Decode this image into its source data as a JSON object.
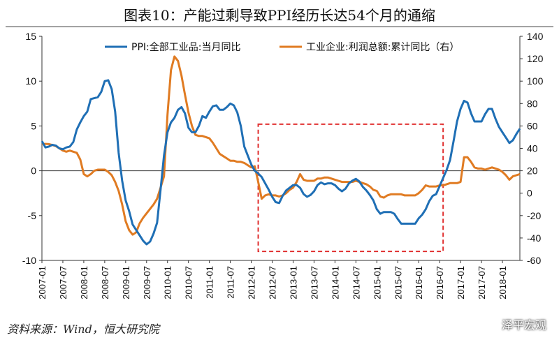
{
  "title": "图表10：产能过剩导致PPI经历长达54个月的通缩",
  "source": "资料来源：Wind，恒大研究院",
  "watermark": "泽平宏观",
  "chart_data": {
    "type": "line",
    "title": "图表10：产能过剩导致PPI经历长达54个月的通缩",
    "left_axis": {
      "ylim": [
        -10,
        15
      ],
      "ticks": [
        -10,
        -5,
        0,
        5,
        10,
        15
      ]
    },
    "right_axis": {
      "ylim": [
        -60,
        140
      ],
      "ticks": [
        -60,
        -40,
        -20,
        0,
        20,
        40,
        60,
        80,
        100,
        120,
        140
      ]
    },
    "x_tick_labels": [
      "2007-01",
      "2007-07",
      "2008-01",
      "2008-07",
      "2009-01",
      "2009-07",
      "2010-01",
      "2010-07",
      "2011-01",
      "2011-07",
      "2012-01",
      "2012-07",
      "2013-01",
      "2013-07",
      "2014-01",
      "2014-07",
      "2015-01",
      "2015-07",
      "2016-01",
      "2016-07",
      "2017-01",
      "2017-07",
      "2018-01"
    ],
    "x_range": [
      "2007-01",
      "2018-06"
    ],
    "legend_position": "top",
    "series": [
      {
        "name": "PPI:全部工业品:当月同比",
        "axis": "left",
        "color": "#1f6fb5",
        "points": [
          [
            "2007-01",
            3.3
          ],
          [
            "2007-02",
            2.6
          ],
          [
            "2007-03",
            2.7
          ],
          [
            "2007-04",
            2.9
          ],
          [
            "2007-05",
            2.8
          ],
          [
            "2007-06",
            2.5
          ],
          [
            "2007-07",
            2.4
          ],
          [
            "2007-08",
            2.6
          ],
          [
            "2007-09",
            2.7
          ],
          [
            "2007-10",
            3.2
          ],
          [
            "2007-11",
            4.6
          ],
          [
            "2007-12",
            5.4
          ],
          [
            "2008-01",
            6.1
          ],
          [
            "2008-02",
            6.6
          ],
          [
            "2008-03",
            8.0
          ],
          [
            "2008-04",
            8.1
          ],
          [
            "2008-05",
            8.2
          ],
          [
            "2008-06",
            8.8
          ],
          [
            "2008-07",
            10.0
          ],
          [
            "2008-08",
            10.1
          ],
          [
            "2008-09",
            9.1
          ],
          [
            "2008-10",
            6.6
          ],
          [
            "2008-11",
            2.0
          ],
          [
            "2008-12",
            -1.1
          ],
          [
            "2009-01",
            -3.3
          ],
          [
            "2009-02",
            -4.5
          ],
          [
            "2009-03",
            -6.0
          ],
          [
            "2009-04",
            -6.6
          ],
          [
            "2009-05",
            -7.2
          ],
          [
            "2009-06",
            -7.8
          ],
          [
            "2009-07",
            -8.2
          ],
          [
            "2009-08",
            -7.9
          ],
          [
            "2009-09",
            -7.0
          ],
          [
            "2009-10",
            -5.8
          ],
          [
            "2009-11",
            -2.1
          ],
          [
            "2009-12",
            1.7
          ],
          [
            "2010-01",
            4.3
          ],
          [
            "2010-02",
            5.4
          ],
          [
            "2010-03",
            5.9
          ],
          [
            "2010-04",
            6.8
          ],
          [
            "2010-05",
            7.1
          ],
          [
            "2010-06",
            6.4
          ],
          [
            "2010-07",
            4.8
          ],
          [
            "2010-08",
            4.3
          ],
          [
            "2010-09",
            4.3
          ],
          [
            "2010-10",
            5.0
          ],
          [
            "2010-11",
            6.1
          ],
          [
            "2010-12",
            5.9
          ],
          [
            "2011-01",
            6.6
          ],
          [
            "2011-02",
            7.2
          ],
          [
            "2011-03",
            7.3
          ],
          [
            "2011-04",
            6.8
          ],
          [
            "2011-05",
            6.8
          ],
          [
            "2011-06",
            7.1
          ],
          [
            "2011-07",
            7.5
          ],
          [
            "2011-08",
            7.3
          ],
          [
            "2011-09",
            6.5
          ],
          [
            "2011-10",
            5.0
          ],
          [
            "2011-11",
            2.7
          ],
          [
            "2011-12",
            1.7
          ],
          [
            "2012-01",
            0.7
          ],
          [
            "2012-02",
            0.0
          ],
          [
            "2012-03",
            -0.3
          ],
          [
            "2012-04",
            -0.7
          ],
          [
            "2012-05",
            -1.4
          ],
          [
            "2012-06",
            -2.1
          ],
          [
            "2012-07",
            -2.9
          ],
          [
            "2012-08",
            -3.5
          ],
          [
            "2012-09",
            -3.6
          ],
          [
            "2012-10",
            -2.8
          ],
          [
            "2012-11",
            -2.2
          ],
          [
            "2012-12",
            -1.9
          ],
          [
            "2013-01",
            -1.6
          ],
          [
            "2013-02",
            -1.6
          ],
          [
            "2013-03",
            -1.9
          ],
          [
            "2013-04",
            -2.6
          ],
          [
            "2013-05",
            -2.9
          ],
          [
            "2013-06",
            -2.7
          ],
          [
            "2013-07",
            -2.3
          ],
          [
            "2013-08",
            -1.6
          ],
          [
            "2013-09",
            -1.3
          ],
          [
            "2013-10",
            -1.5
          ],
          [
            "2013-11",
            -1.4
          ],
          [
            "2013-12",
            -1.4
          ],
          [
            "2014-01",
            -1.6
          ],
          [
            "2014-02",
            -2.0
          ],
          [
            "2014-03",
            -2.3
          ],
          [
            "2014-04",
            -2.0
          ],
          [
            "2014-05",
            -1.4
          ],
          [
            "2014-06",
            -1.1
          ],
          [
            "2014-07",
            -0.9
          ],
          [
            "2014-08",
            -1.2
          ],
          [
            "2014-09",
            -1.8
          ],
          [
            "2014-10",
            -2.2
          ],
          [
            "2014-11",
            -2.7
          ],
          [
            "2014-12",
            -3.3
          ],
          [
            "2015-01",
            -4.3
          ],
          [
            "2015-02",
            -4.8
          ],
          [
            "2015-03",
            -4.6
          ],
          [
            "2015-04",
            -4.6
          ],
          [
            "2015-05",
            -4.6
          ],
          [
            "2015-06",
            -4.8
          ],
          [
            "2015-07",
            -5.4
          ],
          [
            "2015-08",
            -5.9
          ],
          [
            "2015-09",
            -5.9
          ],
          [
            "2015-10",
            -5.9
          ],
          [
            "2015-11",
            -5.9
          ],
          [
            "2015-12",
            -5.9
          ],
          [
            "2016-01",
            -5.3
          ],
          [
            "2016-02",
            -4.9
          ],
          [
            "2016-03",
            -4.3
          ],
          [
            "2016-04",
            -3.4
          ],
          [
            "2016-05",
            -2.8
          ],
          [
            "2016-06",
            -2.6
          ],
          [
            "2016-07",
            -1.7
          ],
          [
            "2016-08",
            -0.8
          ],
          [
            "2016-09",
            0.1
          ],
          [
            "2016-10",
            1.2
          ],
          [
            "2016-11",
            3.3
          ],
          [
            "2016-12",
            5.5
          ],
          [
            "2017-01",
            6.9
          ],
          [
            "2017-02",
            7.8
          ],
          [
            "2017-03",
            7.6
          ],
          [
            "2017-04",
            6.4
          ],
          [
            "2017-05",
            5.5
          ],
          [
            "2017-06",
            5.5
          ],
          [
            "2017-07",
            5.5
          ],
          [
            "2017-08",
            6.3
          ],
          [
            "2017-09",
            6.9
          ],
          [
            "2017-10",
            6.9
          ],
          [
            "2017-11",
            5.8
          ],
          [
            "2017-12",
            4.9
          ],
          [
            "2018-01",
            4.3
          ],
          [
            "2018-02",
            3.7
          ],
          [
            "2018-03",
            3.1
          ],
          [
            "2018-04",
            3.4
          ],
          [
            "2018-05",
            4.1
          ],
          [
            "2018-06",
            4.7
          ]
        ]
      },
      {
        "name": "工业企业:利润总额:累计同比（右）",
        "axis": "right",
        "color": "#e07b22",
        "points": [
          [
            "2007-01",
            44
          ],
          [
            "2007-02",
            44
          ],
          [
            "2007-03",
            43.8
          ],
          [
            "2007-04",
            43
          ],
          [
            "2007-05",
            42
          ],
          [
            "2007-06",
            40
          ],
          [
            "2007-07",
            38
          ],
          [
            "2007-08",
            37
          ],
          [
            "2007-09",
            38
          ],
          [
            "2007-10",
            37
          ],
          [
            "2007-11",
            36
          ],
          [
            "2007-12",
            30
          ],
          [
            "2008-01",
            17
          ],
          [
            "2008-02",
            15
          ],
          [
            "2008-03",
            17
          ],
          [
            "2008-04",
            20
          ],
          [
            "2008-05",
            21
          ],
          [
            "2008-06",
            21
          ],
          [
            "2008-07",
            21
          ],
          [
            "2008-08",
            19
          ],
          [
            "2008-09",
            16
          ],
          [
            "2008-10",
            10
          ],
          [
            "2008-11",
            2
          ],
          [
            "2008-12",
            -10
          ],
          [
            "2009-01",
            -25
          ],
          [
            "2009-02",
            -33
          ],
          [
            "2009-03",
            -37
          ],
          [
            "2009-04",
            -35
          ],
          [
            "2009-05",
            -27
          ],
          [
            "2009-06",
            -22
          ],
          [
            "2009-07",
            -18
          ],
          [
            "2009-08",
            -14
          ],
          [
            "2009-09",
            -10
          ],
          [
            "2009-10",
            -5
          ],
          [
            "2009-11",
            5
          ],
          [
            "2009-12",
            15
          ],
          [
            "2010-01",
            70
          ],
          [
            "2010-02",
            110
          ],
          [
            "2010-03",
            122
          ],
          [
            "2010-04",
            118
          ],
          [
            "2010-05",
            105
          ],
          [
            "2010-06",
            88
          ],
          [
            "2010-07",
            72
          ],
          [
            "2010-08",
            60
          ],
          [
            "2010-09",
            52
          ],
          [
            "2010-10",
            51
          ],
          [
            "2010-11",
            51
          ],
          [
            "2010-12",
            50
          ],
          [
            "2011-01",
            49
          ],
          [
            "2011-02",
            45
          ],
          [
            "2011-03",
            40
          ],
          [
            "2011-04",
            35
          ],
          [
            "2011-05",
            33
          ],
          [
            "2011-06",
            31
          ],
          [
            "2011-07",
            29
          ],
          [
            "2011-08",
            29
          ],
          [
            "2011-09",
            28
          ],
          [
            "2011-10",
            28
          ],
          [
            "2011-11",
            27
          ],
          [
            "2011-12",
            25
          ],
          [
            "2012-01",
            23
          ],
          [
            "2012-02",
            24
          ],
          [
            "2012-03",
            10
          ],
          [
            "2012-04",
            -5
          ],
          [
            "2012-05",
            -2
          ],
          [
            "2012-06",
            -1
          ],
          [
            "2012-07",
            -2
          ],
          [
            "2012-08",
            -2
          ],
          [
            "2012-09",
            -3
          ],
          [
            "2012-10",
            -2
          ],
          [
            "2012-11",
            0
          ],
          [
            "2012-12",
            3
          ],
          [
            "2013-01",
            5
          ],
          [
            "2013-02",
            10
          ],
          [
            "2013-03",
            17
          ],
          [
            "2013-04",
            12
          ],
          [
            "2013-05",
            11
          ],
          [
            "2013-06",
            11
          ],
          [
            "2013-07",
            11
          ],
          [
            "2013-08",
            13
          ],
          [
            "2013-09",
            13
          ],
          [
            "2013-10",
            14
          ],
          [
            "2013-11",
            14
          ],
          [
            "2013-12",
            13
          ],
          [
            "2014-01",
            12
          ],
          [
            "2014-02",
            11
          ],
          [
            "2014-03",
            10
          ],
          [
            "2014-04",
            10
          ],
          [
            "2014-05",
            10
          ],
          [
            "2014-06",
            10
          ],
          [
            "2014-07",
            11
          ],
          [
            "2014-08",
            10
          ],
          [
            "2014-09",
            9
          ],
          [
            "2014-10",
            8
          ],
          [
            "2014-11",
            6
          ],
          [
            "2014-12",
            3
          ],
          [
            "2015-01",
            2
          ],
          [
            "2015-02",
            -3
          ],
          [
            "2015-03",
            -4
          ],
          [
            "2015-04",
            -2
          ],
          [
            "2015-05",
            -1
          ],
          [
            "2015-06",
            -1
          ],
          [
            "2015-07",
            -1
          ],
          [
            "2015-08",
            -1
          ],
          [
            "2015-09",
            -2
          ],
          [
            "2015-10",
            -2
          ],
          [
            "2015-11",
            -2
          ],
          [
            "2015-12",
            -2
          ],
          [
            "2016-01",
            0
          ],
          [
            "2016-02",
            3
          ],
          [
            "2016-03",
            7
          ],
          [
            "2016-04",
            6
          ],
          [
            "2016-05",
            6
          ],
          [
            "2016-06",
            6
          ],
          [
            "2016-07",
            7
          ],
          [
            "2016-08",
            7
          ],
          [
            "2016-09",
            8
          ],
          [
            "2016-10",
            9
          ],
          [
            "2016-11",
            9
          ],
          [
            "2016-12",
            9
          ],
          [
            "2017-01",
            10
          ],
          [
            "2017-02",
            32
          ],
          [
            "2017-03",
            32
          ],
          [
            "2017-04",
            28
          ],
          [
            "2017-05",
            23
          ],
          [
            "2017-06",
            22
          ],
          [
            "2017-07",
            22
          ],
          [
            "2017-08",
            21
          ],
          [
            "2017-09",
            22
          ],
          [
            "2017-10",
            23
          ],
          [
            "2017-11",
            22
          ],
          [
            "2017-12",
            21
          ],
          [
            "2018-01",
            19
          ],
          [
            "2018-02",
            16
          ],
          [
            "2018-03",
            12
          ],
          [
            "2018-04",
            15
          ],
          [
            "2018-05",
            16
          ],
          [
            "2018-06",
            17
          ]
        ]
      }
    ],
    "annotations": [
      {
        "type": "dashed-box",
        "color": "#e03030",
        "from": "2012-03",
        "to": "2016-08",
        "ylim_left": [
          -9,
          5.2
        ]
      }
    ]
  }
}
